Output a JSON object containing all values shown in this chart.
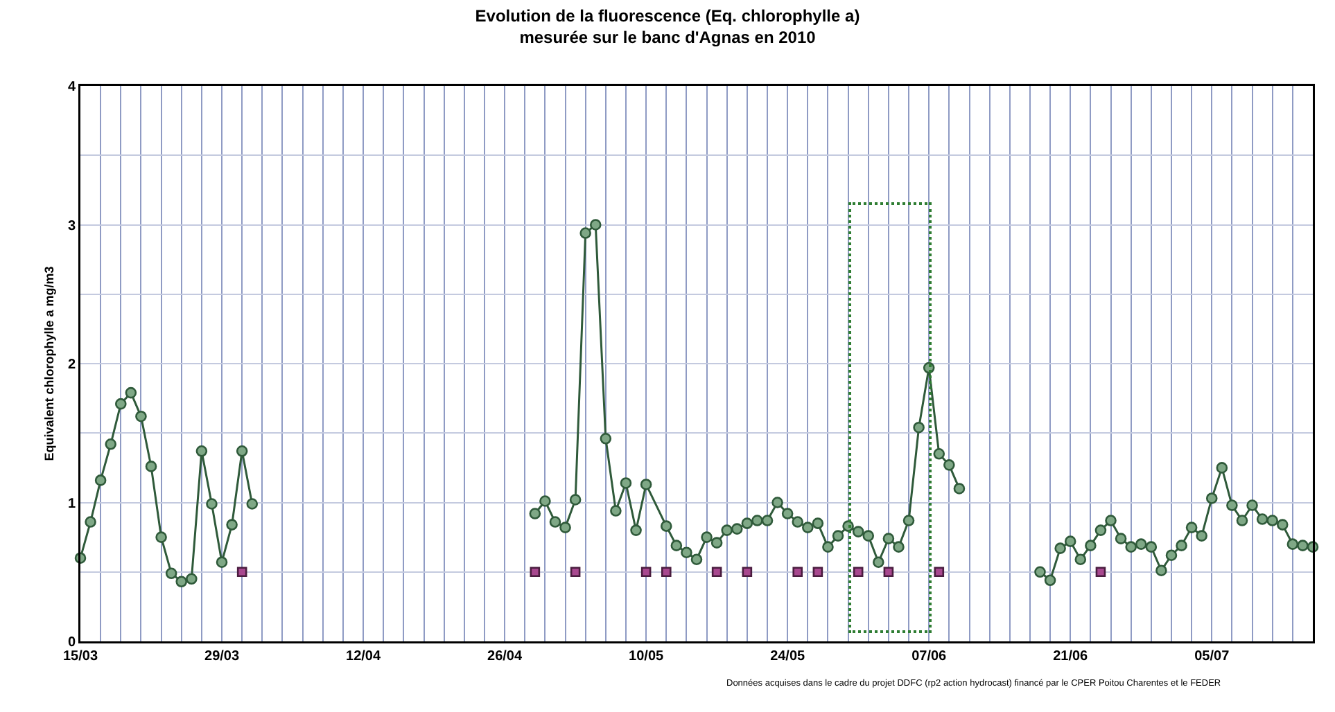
{
  "chart_data": {
    "type": "line",
    "title": "Evolution de la fluorescence (Eq. chlorophylle a)\nmesurée sur le banc d'Agnas en 2010",
    "ylabel": "Equivalent chlorophylle a mg/m3",
    "annotations": [
      "Données acquises dans le cadre du projet DDFC (rp2 action hydrocast) financé par le CPER Poitou Charentes et le FEDER"
    ],
    "series": [
      {
        "color": "#2f5a3a",
        "marker": "circle",
        "x": [
          "--03-15",
          "--03-16",
          "--03-17",
          "--03-18",
          "--03-19",
          "--03-20",
          "--03-21",
          "--03-22",
          "--03-23",
          "--03-24",
          "--03-25",
          "--03-26",
          "--03-27",
          "--03-28",
          "--03-29",
          "--03-30",
          "--03-31",
          "--04-01",
          null,
          "--04-29",
          "--04-30",
          "--05-01",
          "--05-02",
          "--05-03",
          "--05-04",
          "--05-05",
          "--05-06",
          "--05-07",
          "--05-08",
          "--05-09",
          "--05-10",
          "--05-12",
          "--05-13",
          "--05-14",
          "--05-15",
          "--05-16",
          "--05-17",
          "--05-18",
          "--05-19",
          "--05-20",
          "--05-21",
          "--05-22",
          "--05-23",
          "--05-24",
          "--05-25",
          "--05-26",
          "--05-27",
          "--05-28",
          "--05-29",
          "--05-30",
          "--05-31",
          "--06-01",
          "--06-02",
          "--06-03",
          "--06-04",
          "--06-05",
          "--06-06",
          "--06-07",
          "--06-08",
          "--06-09",
          "--06-10",
          null,
          "--06-18",
          "--06-19",
          "--06-20",
          "--06-21",
          "--06-22",
          "--06-23",
          "--06-24",
          "--06-25",
          "--06-26",
          "--06-27",
          "--06-28",
          "--06-29",
          "--06-30",
          "--07-01",
          "--07-02",
          "--07-03",
          "--07-04",
          "--07-05",
          "--07-06",
          "--07-07",
          "--07-08",
          "--07-09",
          "--07-10",
          "--07-11",
          "--07-12",
          "--07-13",
          "--07-14",
          "--07-15"
        ],
        "values": [
          0.6,
          0.86,
          1.16,
          1.42,
          1.71,
          1.79,
          1.62,
          1.26,
          0.75,
          0.49,
          0.43,
          0.45,
          1.37,
          0.99,
          0.57,
          0.84,
          1.37,
          0.99,
          null,
          0.92,
          1.01,
          0.86,
          0.82,
          1.02,
          2.94,
          3.0,
          1.46,
          0.94,
          1.14,
          0.8,
          1.13,
          0.83,
          0.69,
          0.64,
          0.59,
          0.75,
          0.71,
          0.8,
          0.81,
          0.85,
          0.87,
          0.87,
          1.0,
          0.92,
          0.86,
          0.82,
          0.85,
          0.68,
          0.76,
          0.83,
          0.79,
          0.76,
          0.57,
          0.74,
          0.68,
          0.87,
          1.54,
          1.97,
          1.35,
          1.27,
          1.1,
          null,
          0.5,
          0.44,
          0.67,
          0.72,
          0.59,
          0.69,
          0.8,
          0.87,
          0.74,
          0.68,
          0.7,
          0.68,
          0.51,
          0.62,
          0.69,
          0.82,
          0.76,
          1.03,
          1.25,
          0.98,
          0.87,
          0.98,
          0.88,
          0.87,
          0.84,
          0.7,
          0.69,
          0.68
        ]
      },
      {
        "type": "scatter",
        "color": "#a8488f",
        "marker": "square",
        "x": [
          "--03-31",
          "--04-29",
          "--05-03",
          "--05-10",
          "--05-12",
          "--05-17",
          "--05-20",
          "--05-25",
          "--05-27",
          "--05-31",
          "--06-03",
          "--06-08",
          "--06-24"
        ],
        "values": [
          0.5,
          0.5,
          0.5,
          0.5,
          0.5,
          0.5,
          0.5,
          0.5,
          0.5,
          0.5,
          0.5,
          0.5,
          0.5
        ]
      }
    ],
    "xlim": [
      "--03-15",
      "--07-15"
    ],
    "xticks": [
      {
        "value": "--03-15",
        "label": "15/03"
      },
      {
        "value": "--03-17",
        "label": null
      },
      {
        "value": "--03-19",
        "label": null
      },
      {
        "value": "--03-21",
        "label": null
      },
      {
        "value": "--03-23",
        "label": null
      },
      {
        "value": "--03-25",
        "label": null
      },
      {
        "value": "--03-27",
        "label": null
      },
      {
        "value": "--03-29",
        "label": "29/03"
      },
      {
        "value": "--03-31",
        "label": null
      },
      {
        "value": "--04-02",
        "label": null
      },
      {
        "value": "--04-04",
        "label": null
      },
      {
        "value": "--04-06",
        "label": null
      },
      {
        "value": "--04-08",
        "label": null
      },
      {
        "value": "--04-10",
        "label": null
      },
      {
        "value": "--04-12",
        "label": "12/04"
      },
      {
        "value": "--04-14",
        "label": null
      },
      {
        "value": "--04-16",
        "label": null
      },
      {
        "value": "--04-18",
        "label": null
      },
      {
        "value": "--04-20",
        "label": null
      },
      {
        "value": "--04-22",
        "label": null
      },
      {
        "value": "--04-24",
        "label": null
      },
      {
        "value": "--04-26",
        "label": "26/04"
      },
      {
        "value": "--04-28",
        "label": null
      },
      {
        "value": "--04-30",
        "label": null
      },
      {
        "value": "--05-02",
        "label": null
      },
      {
        "value": "--05-04",
        "label": null
      },
      {
        "value": "--05-06",
        "label": null
      },
      {
        "value": "--05-08",
        "label": null
      },
      {
        "value": "--05-10",
        "label": "10/05"
      },
      {
        "value": "--05-12",
        "label": null
      },
      {
        "value": "--05-14",
        "label": null
      },
      {
        "value": "--05-16",
        "label": null
      },
      {
        "value": "--05-18",
        "label": null
      },
      {
        "value": "--05-20",
        "label": null
      },
      {
        "value": "--05-22",
        "label": null
      },
      {
        "value": "--05-24",
        "label": "24/05"
      },
      {
        "value": "--05-26",
        "label": null
      },
      {
        "value": "--05-28",
        "label": null
      },
      {
        "value": "--05-30",
        "label": null
      },
      {
        "value": "--06-01",
        "label": null
      },
      {
        "value": "--06-03",
        "label": null
      },
      {
        "value": "--06-05",
        "label": null
      },
      {
        "value": "--06-07",
        "label": "07/06"
      },
      {
        "value": "--06-09",
        "label": null
      },
      {
        "value": "--06-11",
        "label": null
      },
      {
        "value": "--06-13",
        "label": null
      },
      {
        "value": "--06-15",
        "label": null
      },
      {
        "value": "--06-17",
        "label": null
      },
      {
        "value": "--06-19",
        "label": null
      },
      {
        "value": "--06-21",
        "label": "21/06"
      },
      {
        "value": "--06-23",
        "label": null
      },
      {
        "value": "--06-25",
        "label": null
      },
      {
        "value": "--06-27",
        "label": null
      },
      {
        "value": "--06-29",
        "label": null
      },
      {
        "value": "--07-01",
        "label": null
      },
      {
        "value": "--07-03",
        "label": null
      },
      {
        "value": "--07-05",
        "label": "05/07"
      },
      {
        "value": "--07-07",
        "label": null
      },
      {
        "value": "--07-09",
        "label": null
      },
      {
        "value": "--07-11",
        "label": null
      },
      {
        "value": "--07-13",
        "label": null
      }
    ],
    "ylim": [
      0,
      4
    ],
    "yticks": [
      0,
      {
        "value": 0.5,
        "label": null
      },
      1,
      {
        "value": 1.5,
        "label": null
      },
      2,
      {
        "value": 2.5,
        "label": null
      },
      3,
      {
        "value": 3.5,
        "label": null
      },
      4
    ],
    "grid": true,
    "line_style": "solid"
  }
}
